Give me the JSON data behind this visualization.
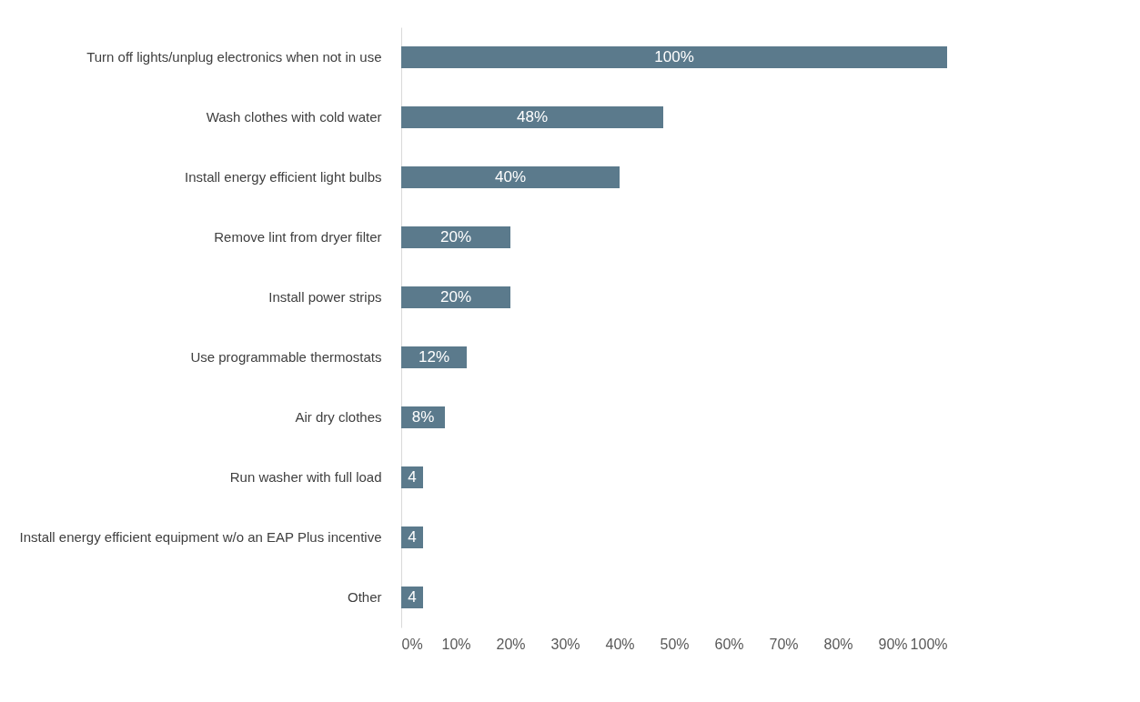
{
  "chart_data": {
    "type": "bar",
    "orientation": "horizontal",
    "categories": [
      "Turn off lights/unplug electronics when not in use",
      "Wash clothes with cold water",
      "Install energy efficient light bulbs",
      "Remove lint from dryer filter",
      "Install power strips",
      "Use programmable thermostats",
      "Air dry clothes",
      "Run washer with full load",
      "Install energy efficient equipment w/o an EAP Plus incentive",
      "Other"
    ],
    "values": [
      100,
      48,
      40,
      20,
      20,
      12,
      8,
      4,
      4,
      4
    ],
    "value_labels": [
      "100%",
      "48%",
      "40%",
      "20%",
      "20%",
      "12%",
      "8%",
      "4",
      "4",
      "4"
    ],
    "color": "#5b7a8c",
    "xlim": [
      0,
      100
    ],
    "xticks": [
      {
        "value": 0,
        "label": "0%"
      },
      {
        "value": 10,
        "label": "10%"
      },
      {
        "value": 20,
        "label": "20%"
      },
      {
        "value": 30,
        "label": "30%"
      },
      {
        "value": 40,
        "label": "40%"
      },
      {
        "value": 50,
        "label": "50%"
      },
      {
        "value": 60,
        "label": "60%"
      },
      {
        "value": 70,
        "label": "70%"
      },
      {
        "value": 80,
        "label": "80%"
      },
      {
        "value": 90,
        "label": "90%"
      },
      {
        "value": 100,
        "label": "100%"
      }
    ],
    "grid": false
  }
}
